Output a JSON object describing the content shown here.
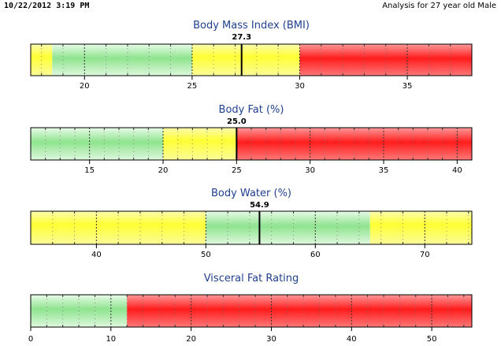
{
  "header": {
    "timestamp": "10/22/2012 3:19 PM",
    "analysis": "Analysis for 27 year old Male"
  },
  "colors": {
    "title": "#1f3f8f",
    "green": "#8fe38f",
    "yellow": "#ffff33",
    "red": "#ff1c1c",
    "frame": "#000000",
    "grid": "#777777"
  },
  "chart_data": [
    {
      "type": "bar",
      "title": "Body Mass Index (BMI)",
      "value": 27.3,
      "value_label": "27.3",
      "xlim": [
        17.5,
        38
      ],
      "ticks": [
        20,
        25,
        30,
        35
      ],
      "tick_labels": [
        "20",
        "25",
        "30",
        "35"
      ],
      "minor_step": 1,
      "zones": [
        {
          "from": 17.5,
          "to": 18.5,
          "color": "yellow"
        },
        {
          "from": 18.5,
          "to": 25,
          "color": "green"
        },
        {
          "from": 25,
          "to": 30,
          "color": "yellow"
        },
        {
          "from": 30,
          "to": 38,
          "color": "red"
        }
      ]
    },
    {
      "type": "bar",
      "title": "Body Fat (%)",
      "value": 25.0,
      "value_label": "25.0",
      "xlim": [
        11,
        41
      ],
      "ticks": [
        15,
        20,
        25,
        30,
        35,
        40
      ],
      "tick_labels": [
        "15",
        "20",
        "25",
        "30",
        "35",
        "40"
      ],
      "minor_step": 1,
      "zones": [
        {
          "from": 11,
          "to": 20,
          "color": "green"
        },
        {
          "from": 20,
          "to": 25,
          "color": "yellow"
        },
        {
          "from": 25,
          "to": 41,
          "color": "red"
        }
      ]
    },
    {
      "type": "bar",
      "title": "Body Water (%)",
      "value": 54.9,
      "value_label": "54.9",
      "xlim": [
        34,
        74.3
      ],
      "ticks": [
        40,
        50,
        60,
        70
      ],
      "tick_labels": [
        "40",
        "50",
        "60",
        "70"
      ],
      "minor_step": 2,
      "zones": [
        {
          "from": 34,
          "to": 50,
          "color": "yellow"
        },
        {
          "from": 50,
          "to": 65,
          "color": "green"
        },
        {
          "from": 65,
          "to": 74.3,
          "color": "yellow"
        }
      ]
    },
    {
      "type": "bar",
      "title": "Visceral Fat Rating",
      "value": null,
      "value_label": "",
      "xlim": [
        0,
        55
      ],
      "ticks": [
        0,
        10,
        20,
        30,
        40,
        50
      ],
      "tick_labels": [
        "0",
        "10",
        "20",
        "30",
        "40",
        "50"
      ],
      "minor_step": 2,
      "zones": [
        {
          "from": 0,
          "to": 12,
          "color": "green"
        },
        {
          "from": 12,
          "to": 55,
          "color": "red"
        }
      ]
    }
  ]
}
